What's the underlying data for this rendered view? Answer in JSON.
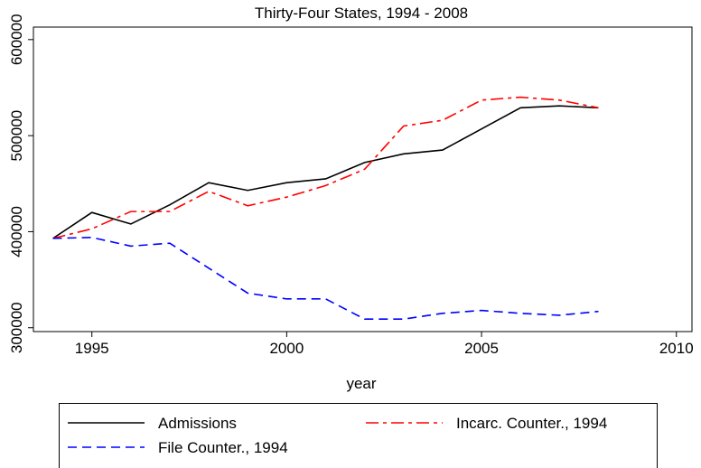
{
  "chart_data": {
    "type": "line",
    "title": "Thirty-Four States, 1994 - 2008",
    "x_label": "year",
    "x": [
      1994,
      1995,
      1996,
      1997,
      1998,
      1999,
      2000,
      2001,
      2002,
      2003,
      2004,
      2005,
      2006,
      2007,
      2008
    ],
    "series": [
      {
        "name": "Admissions",
        "color": "#000000",
        "line_style": "solid",
        "values": [
          393000,
          420000,
          408000,
          428000,
          451000,
          443000,
          451000,
          455000,
          472000,
          481000,
          485000,
          507000,
          529000,
          531000,
          529000
        ]
      },
      {
        "name": "Incarc. Counter., 1994",
        "color": "#ff0000",
        "line_style": "long-dash",
        "values": [
          393000,
          403000,
          421000,
          421000,
          442000,
          427000,
          436000,
          448000,
          465000,
          510000,
          516000,
          537000,
          540000,
          537000,
          529000
        ]
      },
      {
        "name": "File Counter., 1994",
        "color": "#0000ff",
        "line_style": "dash",
        "values": [
          393000,
          394000,
          385000,
          388000,
          362000,
          336000,
          330000,
          330000,
          309000,
          309000,
          315000,
          318000,
          315000,
          313000,
          317000
        ]
      }
    ],
    "xlim": [
      1993.5,
      2010.4
    ],
    "xticks": [
      1995,
      2000,
      2005,
      2010
    ],
    "ylim": [
      296000,
      613000
    ],
    "yticks": [
      300000,
      400000,
      500000,
      600000
    ]
  }
}
